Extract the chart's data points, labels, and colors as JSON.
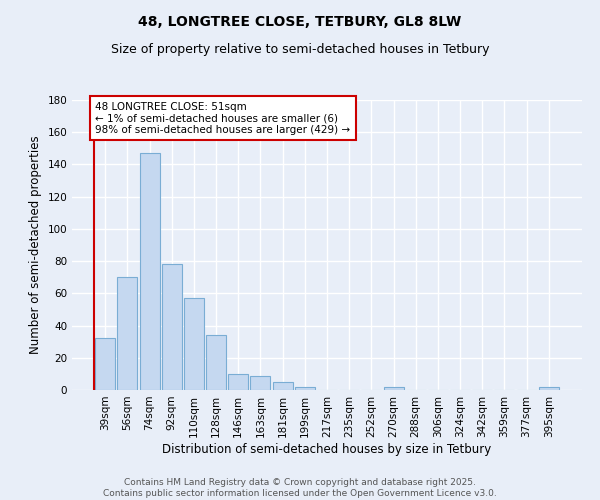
{
  "title": "48, LONGTREE CLOSE, TETBURY, GL8 8LW",
  "subtitle": "Size of property relative to semi-detached houses in Tetbury",
  "xlabel": "Distribution of semi-detached houses by size in Tetbury",
  "ylabel": "Number of semi-detached properties",
  "categories": [
    "39sqm",
    "56sqm",
    "74sqm",
    "92sqm",
    "110sqm",
    "128sqm",
    "146sqm",
    "163sqm",
    "181sqm",
    "199sqm",
    "217sqm",
    "235sqm",
    "252sqm",
    "270sqm",
    "288sqm",
    "306sqm",
    "324sqm",
    "342sqm",
    "359sqm",
    "377sqm",
    "395sqm"
  ],
  "values": [
    32,
    70,
    147,
    78,
    57,
    34,
    10,
    9,
    5,
    2,
    0,
    0,
    0,
    2,
    0,
    0,
    0,
    0,
    0,
    0,
    2
  ],
  "bar_color": "#c5d8f0",
  "bar_edge_color": "#7aadd4",
  "vline_color": "#cc0000",
  "vline_x": -0.5,
  "annotation_text": "48 LONGTREE CLOSE: 51sqm\n← 1% of semi-detached houses are smaller (6)\n98% of semi-detached houses are larger (429) →",
  "annotation_box_color": "#ffffff",
  "annotation_box_edge_color": "#cc0000",
  "ylim": [
    0,
    180
  ],
  "yticks": [
    0,
    20,
    40,
    60,
    80,
    100,
    120,
    140,
    160,
    180
  ],
  "footer_text": "Contains HM Land Registry data © Crown copyright and database right 2025.\nContains public sector information licensed under the Open Government Licence v3.0.",
  "bg_color": "#e8eef8",
  "grid_color": "#ffffff",
  "title_fontsize": 10,
  "subtitle_fontsize": 9,
  "axis_label_fontsize": 8.5,
  "tick_fontsize": 7.5,
  "annotation_fontsize": 7.5,
  "footer_fontsize": 6.5
}
